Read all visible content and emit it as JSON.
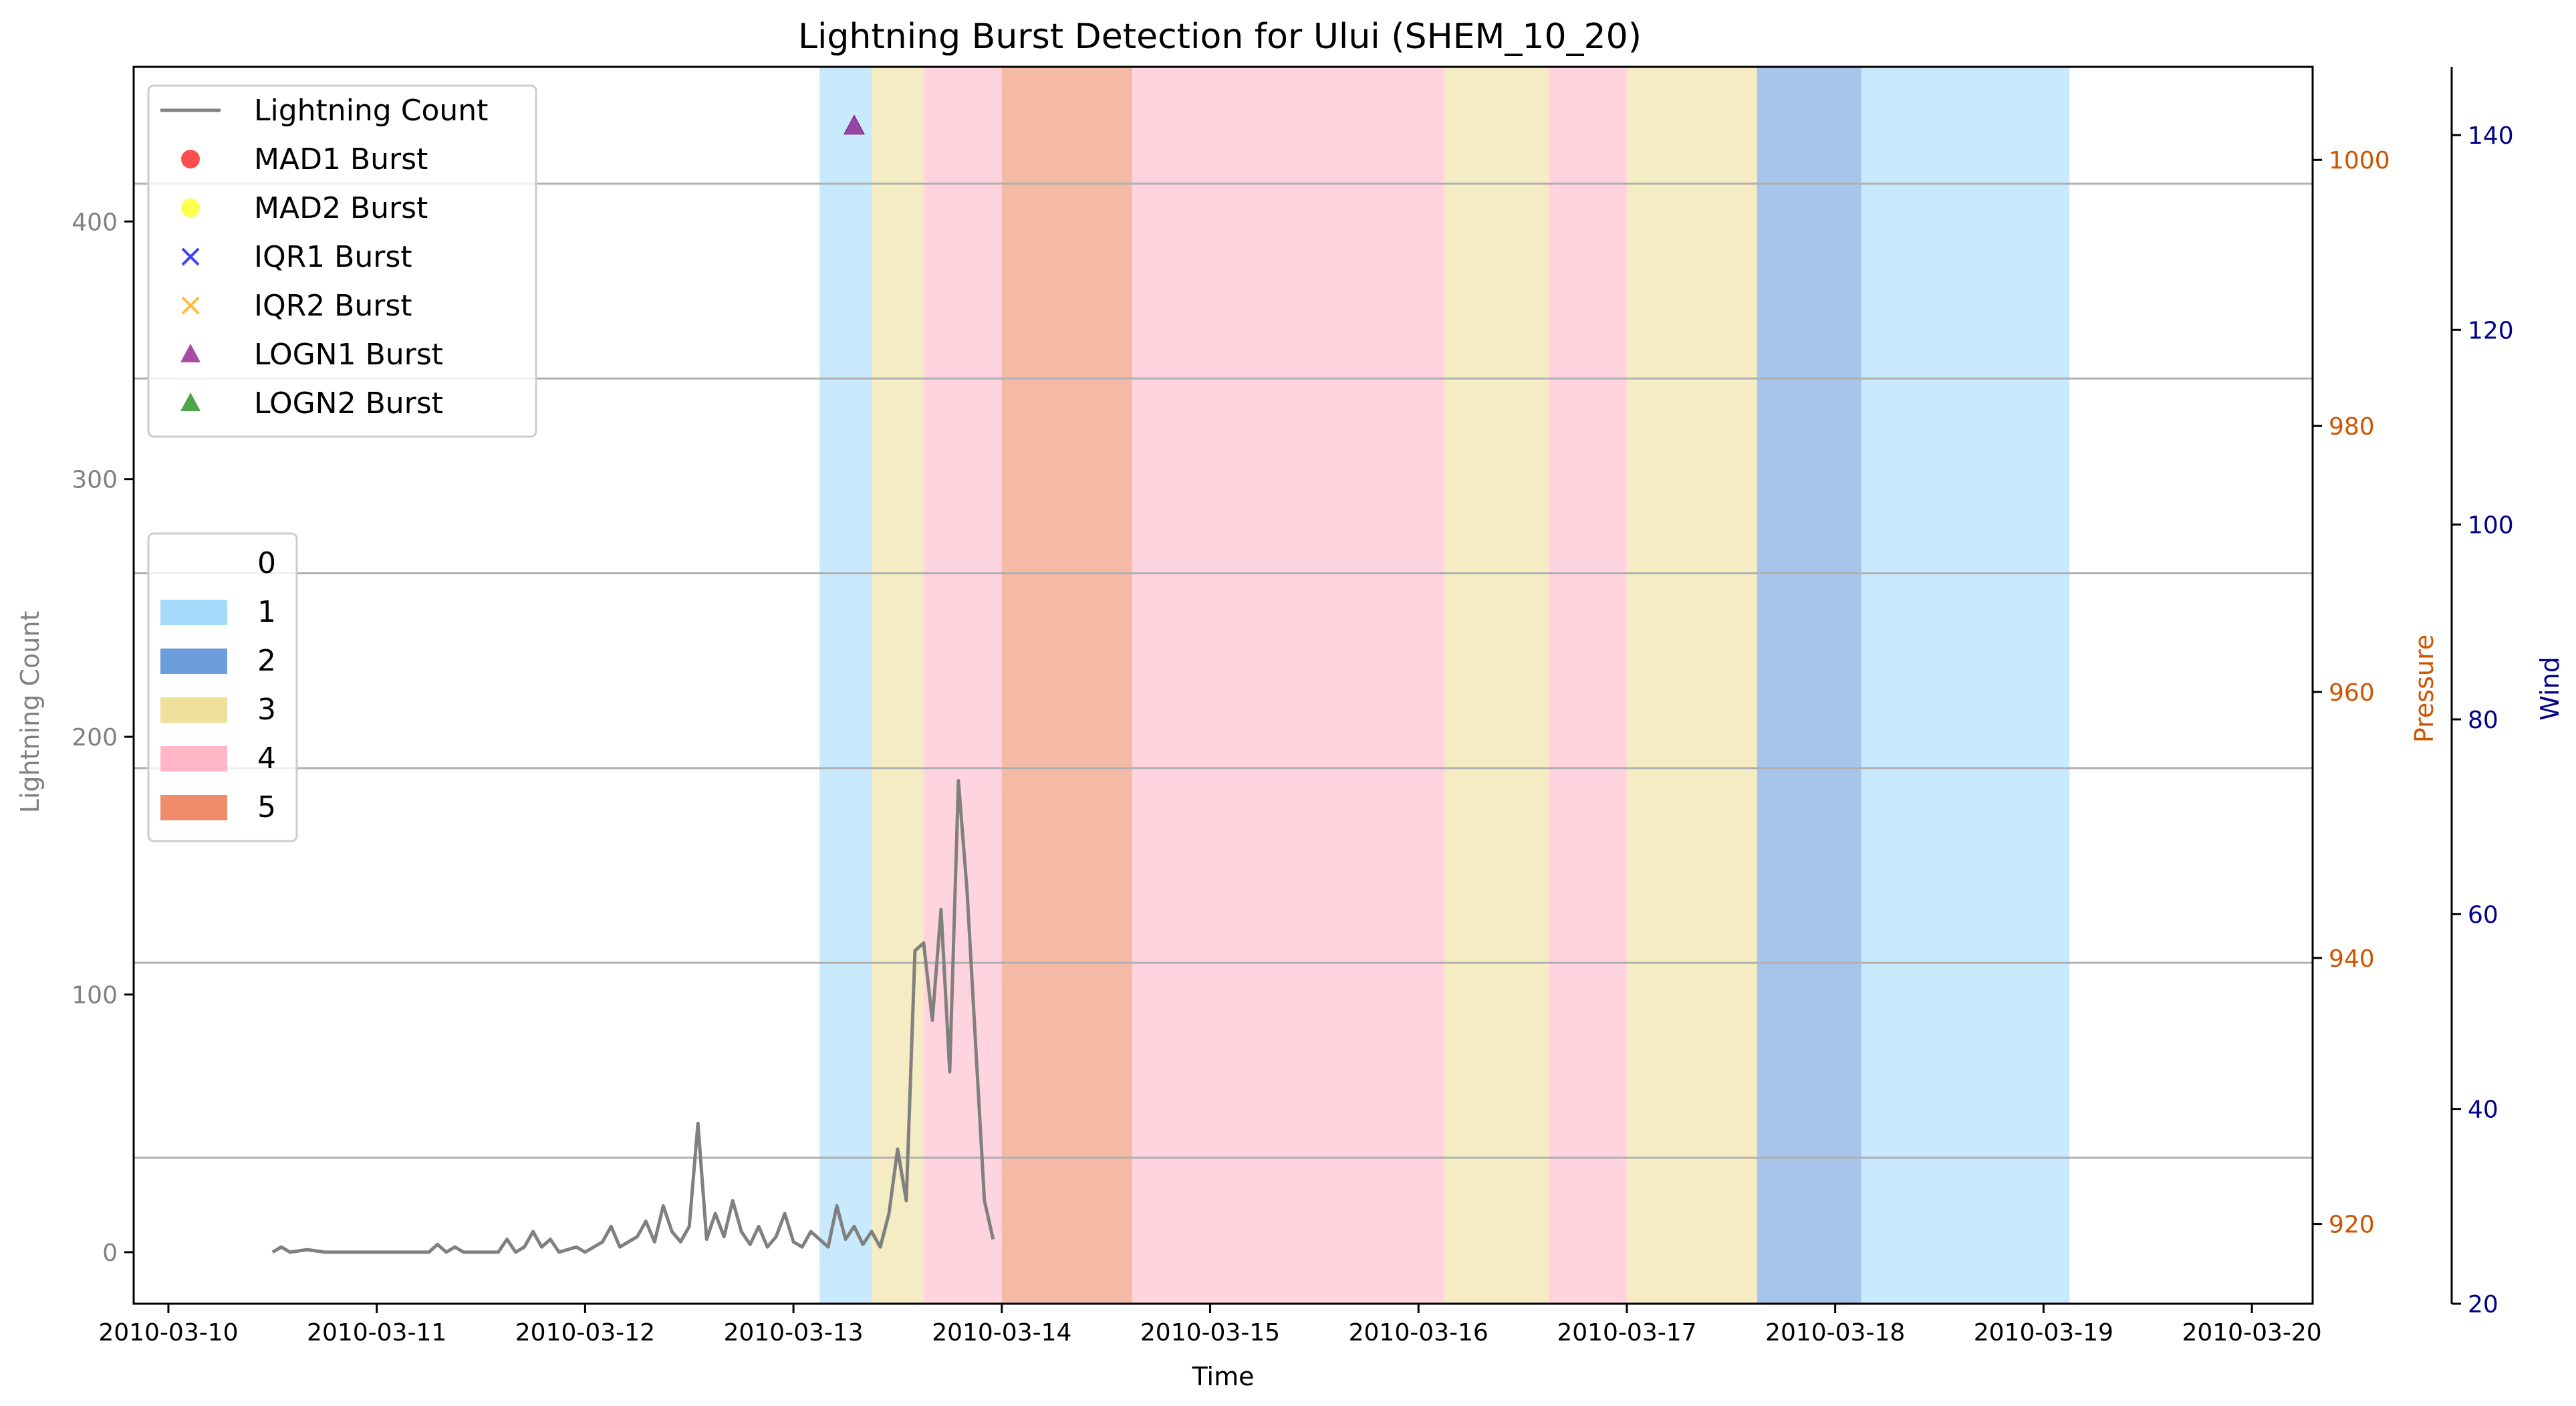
{
  "chart_data": {
    "type": "line",
    "title": "Lightning Burst Detection for Ului (SHEM_10_20)",
    "xlabel": "Time",
    "xlim": [
      "2010-03-09T20:00",
      "2010-03-20T07:00"
    ],
    "x_ticks": [
      "2010-03-10",
      "2010-03-11",
      "2010-03-12",
      "2010-03-13",
      "2010-03-14",
      "2010-03-15",
      "2010-03-16",
      "2010-03-17",
      "2010-03-18",
      "2010-03-19",
      "2010-03-20"
    ],
    "y_axes": {
      "lightning": {
        "label": "Lightning Count",
        "color": "#808080",
        "lim": [
          -20,
          460
        ],
        "ticks": [
          0,
          100,
          200,
          300,
          400
        ]
      },
      "pressure": {
        "label": "Pressure",
        "color": "#cc5500",
        "lim": [
          914,
          1007
        ],
        "ticks": [
          920,
          940,
          960,
          980,
          1000
        ]
      },
      "wind": {
        "label": "Wind",
        "color": "#00008b",
        "lim": [
          20,
          147
        ],
        "ticks": [
          20,
          40,
          60,
          80,
          100,
          120,
          140
        ]
      }
    },
    "grid_wind_levels": [
      35,
      55,
      75,
      95,
      115,
      135
    ],
    "categories_legend": [
      {
        "label": "0",
        "color": "#ffffff"
      },
      {
        "label": "1",
        "color": "#87cefa"
      },
      {
        "label": "2",
        "color": "#3b7dd0"
      },
      {
        "label": "3",
        "color": "#e8d57a"
      },
      {
        "label": "4",
        "color": "#ff9fb5"
      },
      {
        "label": "5",
        "color": "#e8653a"
      }
    ],
    "category_spans": [
      {
        "start": "2010-03-13T03:00",
        "end": "2010-03-13T09:00",
        "category": 1
      },
      {
        "start": "2010-03-13T09:00",
        "end": "2010-03-13T15:00",
        "category": 3
      },
      {
        "start": "2010-03-13T15:00",
        "end": "2010-03-14T00:00",
        "category": 4
      },
      {
        "start": "2010-03-14T00:00",
        "end": "2010-03-14T15:00",
        "category": 5
      },
      {
        "start": "2010-03-14T15:00",
        "end": "2010-03-16T03:00",
        "category": 4
      },
      {
        "start": "2010-03-16T03:00",
        "end": "2010-03-16T15:00",
        "category": 3
      },
      {
        "start": "2010-03-16T15:00",
        "end": "2010-03-17T00:00",
        "category": 4
      },
      {
        "start": "2010-03-17T00:00",
        "end": "2010-03-17T15:00",
        "category": 3
      },
      {
        "start": "2010-03-17T15:00",
        "end": "2010-03-18T03:00",
        "category": 2
      },
      {
        "start": "2010-03-18T03:00",
        "end": "2010-03-19T03:00",
        "category": 1
      }
    ],
    "series": [
      {
        "name": "Lightning Count",
        "axis": "lightning",
        "color": "#808080",
        "points": [
          [
            "2010-03-10T12:00",
            0
          ],
          [
            "2010-03-10T13:00",
            2
          ],
          [
            "2010-03-10T14:00",
            0
          ],
          [
            "2010-03-10T16:00",
            1
          ],
          [
            "2010-03-10T18:00",
            0
          ],
          [
            "2010-03-11T06:00",
            0
          ],
          [
            "2010-03-11T07:00",
            3
          ],
          [
            "2010-03-11T08:00",
            0
          ],
          [
            "2010-03-11T09:00",
            2
          ],
          [
            "2010-03-11T10:00",
            0
          ],
          [
            "2010-03-11T14:00",
            0
          ],
          [
            "2010-03-11T15:00",
            5
          ],
          [
            "2010-03-11T16:00",
            0
          ],
          [
            "2010-03-11T17:00",
            2
          ],
          [
            "2010-03-11T18:00",
            8
          ],
          [
            "2010-03-11T19:00",
            2
          ],
          [
            "2010-03-11T20:00",
            5
          ],
          [
            "2010-03-11T21:00",
            0
          ],
          [
            "2010-03-11T23:00",
            2
          ],
          [
            "2010-03-12T00:00",
            0
          ],
          [
            "2010-03-12T02:00",
            4
          ],
          [
            "2010-03-12T03:00",
            10
          ],
          [
            "2010-03-12T04:00",
            2
          ],
          [
            "2010-03-12T06:00",
            6
          ],
          [
            "2010-03-12T07:00",
            12
          ],
          [
            "2010-03-12T08:00",
            4
          ],
          [
            "2010-03-12T09:00",
            18
          ],
          [
            "2010-03-12T10:00",
            8
          ],
          [
            "2010-03-12T11:00",
            4
          ],
          [
            "2010-03-12T12:00",
            10
          ],
          [
            "2010-03-12T13:00",
            50
          ],
          [
            "2010-03-12T14:00",
            5
          ],
          [
            "2010-03-12T15:00",
            15
          ],
          [
            "2010-03-12T16:00",
            6
          ],
          [
            "2010-03-12T17:00",
            20
          ],
          [
            "2010-03-12T18:00",
            8
          ],
          [
            "2010-03-12T19:00",
            3
          ],
          [
            "2010-03-12T20:00",
            10
          ],
          [
            "2010-03-12T21:00",
            2
          ],
          [
            "2010-03-12T22:00",
            6
          ],
          [
            "2010-03-12T23:00",
            15
          ],
          [
            "2010-03-13T00:00",
            4
          ],
          [
            "2010-03-13T01:00",
            2
          ],
          [
            "2010-03-13T02:00",
            8
          ],
          [
            "2010-03-13T03:00",
            5
          ],
          [
            "2010-03-13T04:00",
            2
          ],
          [
            "2010-03-13T05:00",
            18
          ],
          [
            "2010-03-13T06:00",
            5
          ],
          [
            "2010-03-13T07:00",
            10
          ],
          [
            "2010-03-13T08:00",
            3
          ],
          [
            "2010-03-13T09:00",
            8
          ],
          [
            "2010-03-13T10:00",
            2
          ],
          [
            "2010-03-13T11:00",
            15
          ],
          [
            "2010-03-13T12:00",
            40
          ],
          [
            "2010-03-13T13:00",
            20
          ],
          [
            "2010-03-13T14:00",
            117
          ],
          [
            "2010-03-13T15:00",
            120
          ],
          [
            "2010-03-13T16:00",
            90
          ],
          [
            "2010-03-13T17:00",
            133
          ],
          [
            "2010-03-13T18:00",
            70
          ],
          [
            "2010-03-13T19:00",
            183
          ],
          [
            "2010-03-13T20:00",
            140
          ],
          [
            "2010-03-13T21:00",
            80
          ],
          [
            "2010-03-13T22:00",
            20
          ],
          [
            "2010-03-13T23:00",
            5
          ]
        ]
      }
    ],
    "legend": [
      "Lightning Count",
      "MAD1 Burst",
      "MAD2 Burst",
      "IQR1 Burst",
      "IQR2 Burst",
      "LOGN1 Burst",
      "LOGN2 Burst"
    ],
    "legend_markers": [
      {
        "label": "MAD1 Burst",
        "marker": "circle",
        "color": "#ff0000"
      },
      {
        "label": "MAD2 Burst",
        "marker": "circle",
        "color": "#ffff00"
      },
      {
        "label": "IQR1 Burst",
        "marker": "x",
        "color": "#0000ff"
      },
      {
        "label": "IQR2 Burst",
        "marker": "x",
        "color": "#ffa500"
      },
      {
        "label": "LOGN1 Burst",
        "marker": "triangle",
        "color": "#800080"
      },
      {
        "label": "LOGN2 Burst",
        "marker": "triangle",
        "color": "#008000"
      }
    ],
    "burst_points": [
      {
        "label": "LOGN1 Burst",
        "x": "2010-03-13T07:00",
        "y": 437
      }
    ]
  }
}
